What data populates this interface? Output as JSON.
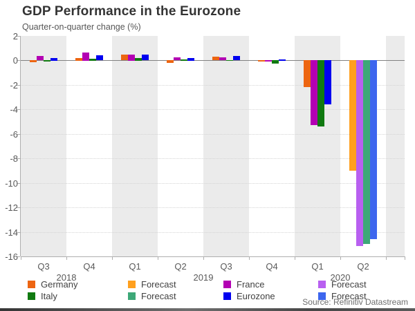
{
  "header": {
    "title": "GDP Performance in the Eurozone",
    "subtitle": "Quarter-on-quarter change (%)"
  },
  "source": "Source: Refinitiv Datastream",
  "chart_data": {
    "type": "bar",
    "title": "GDP Performance in the Eurozone",
    "subtitle": "Quarter-on-quarter change (%)",
    "categories": [
      "Q3 2018",
      "Q4 2018",
      "Q1 2019",
      "Q2 2019",
      "Q3 2019",
      "Q4 2019",
      "Q1 2020",
      "Q2 2020"
    ],
    "x_quarter_labels": [
      "Q3",
      "Q4",
      "Q1",
      "Q2",
      "Q3",
      "Q4",
      "Q1",
      "Q2"
    ],
    "x_year_labels": [
      {
        "label": "2018",
        "boundary": 1
      },
      {
        "label": "2019",
        "boundary": 4
      },
      {
        "label": "2020",
        "boundary": 7
      }
    ],
    "ylim": [
      -16,
      2
    ],
    "y_ticks": [
      2,
      0,
      -2,
      -4,
      -6,
      -8,
      -10,
      -12,
      -14,
      -16
    ],
    "grid": "horizontal-dotted",
    "plot_stripe_colors": [
      "#ebebeb",
      "#ffffff"
    ],
    "zero_line_color": "#808080",
    "axis_color": "#aeaeae",
    "forecast_index": 7,
    "series": [
      {
        "name": "Germany",
        "color": "#ed6511",
        "forecast_color": "#ffa01e",
        "values": [
          -0.15,
          0.2,
          0.45,
          -0.2,
          0.3,
          -0.1,
          -2.2,
          -9.0
        ]
      },
      {
        "name": "France",
        "color": "#b300b3",
        "forecast_color": "#b860f0",
        "values": [
          0.35,
          0.65,
          0.5,
          0.25,
          0.25,
          -0.1,
          -5.3,
          -15.2
        ]
      },
      {
        "name": "Italy",
        "color": "#107a10",
        "forecast_color": "#3da878",
        "values": [
          -0.1,
          0.15,
          0.2,
          0.1,
          0.05,
          -0.3,
          -5.4,
          -15.0
        ]
      },
      {
        "name": "Eurozone",
        "color": "#0000f0",
        "forecast_color": "#3d66ee",
        "values": [
          0.2,
          0.4,
          0.45,
          0.2,
          0.35,
          0.1,
          -3.6,
          -14.6
        ]
      }
    ],
    "legend_position": "bottom",
    "legend_columns": [
      {
        "items": [
          {
            "label": "Germany",
            "color": "#ed6511"
          },
          {
            "label": "Italy",
            "color": "#107a10"
          }
        ]
      },
      {
        "items": [
          {
            "label": "Forecast",
            "color": "#ffa01e"
          },
          {
            "label": "Forecast",
            "color": "#3da878"
          }
        ]
      },
      {
        "items": [
          {
            "label": "France",
            "color": "#b300b3"
          },
          {
            "label": "Eurozone",
            "color": "#0000f0"
          }
        ]
      },
      {
        "items": [
          {
            "label": "Forecast",
            "color": "#b860f0"
          },
          {
            "label": "Forecast",
            "color": "#3d66ee"
          }
        ]
      }
    ]
  }
}
